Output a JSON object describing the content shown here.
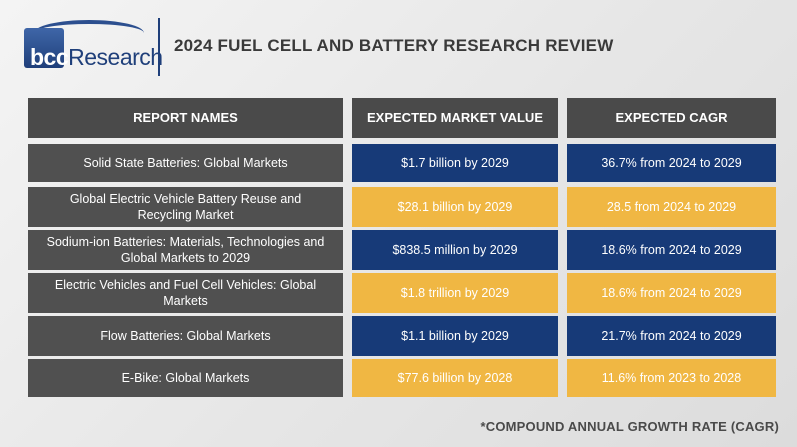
{
  "logo": {
    "text_bold": "bcc",
    "text_rest": "Research"
  },
  "title": "2024 FUEL CELL AND BATTERY RESEARCH REVIEW",
  "table": {
    "headers": [
      "REPORT NAMES",
      "EXPECTED MARKET VALUE",
      "EXPECTED CAGR"
    ],
    "rows": [
      {
        "name": "Solid State Batteries: Global Markets",
        "value": "$1.7 billion by 2029",
        "cagr": "36.7% from 2024 to 2029"
      },
      {
        "name": "Global Electric Vehicle Battery Reuse and Recycling Market",
        "value": "$28.1 billion by 2029",
        "cagr": "28.5 from 2024 to 2029"
      },
      {
        "name": "Sodium-ion Batteries: Materials, Technologies and Global Markets to 2029",
        "value": "$838.5 million by 2029",
        "cagr": "18.6% from 2024 to 2029"
      },
      {
        "name": "Electric Vehicles and Fuel Cell Vehicles: Global Markets",
        "value": "$1.8 trillion by 2029",
        "cagr": "18.6% from 2024 to 2029"
      },
      {
        "name": "Flow Batteries: Global Markets",
        "value": "$1.1 billion by 2029",
        "cagr": "21.7% from 2024 to 2029"
      },
      {
        "name": "E-Bike: Global Markets",
        "value": "$77.6 billion by 2028",
        "cagr": "11.6% from 2023 to 2028"
      }
    ]
  },
  "footnote": "*COMPOUND ANNUAL GROWTH RATE (CAGR)",
  "colors": {
    "navy": "#173a78",
    "gold": "#f0b743",
    "dark_gray": "#505050",
    "header_gray": "#4a4a4a"
  }
}
